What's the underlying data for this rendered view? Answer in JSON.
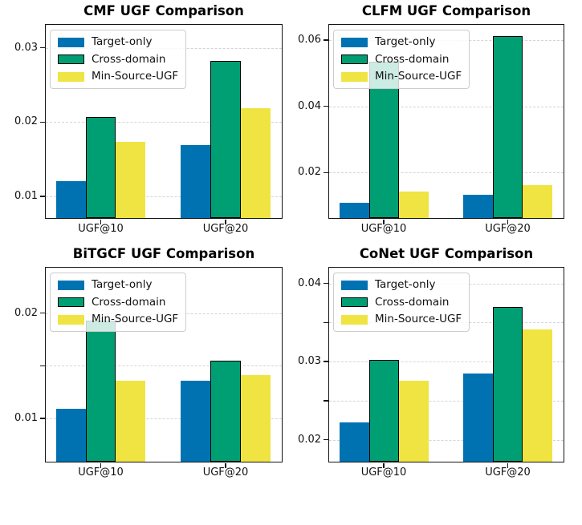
{
  "figure": {
    "background": "#ffffff"
  },
  "chart_data": {
    "type": "bar",
    "layout": "2x2-grid",
    "categories": [
      "UGF@10",
      "UGF@20"
    ],
    "series_names": [
      "Target-only",
      "Cross-domain",
      "Min-Source-UGF"
    ],
    "colors": {
      "Target-only": "#0072B2",
      "Cross-domain": "#009E73",
      "Min-Source-UGF": "#F0E442"
    },
    "cross_domain_edge_color": "#000000",
    "grid": "horizontal dashed light-gray",
    "legend_position": "upper-left",
    "charts": [
      {
        "title": "CMF UGF Comparison",
        "ylim": [
          0.0071,
          0.0331
        ],
        "yticks": [
          {
            "value": 0.01,
            "label": "0.01"
          },
          {
            "value": 0.02,
            "label": "0.02"
          },
          {
            "value": 0.03,
            "label": "0.03"
          }
        ],
        "series": [
          {
            "name": "Target-only",
            "values": [
              0.0121,
              0.0169
            ]
          },
          {
            "name": "Cross-domain",
            "values": [
              0.0207,
              0.0283
            ]
          },
          {
            "name": "Min-Source-UGF",
            "values": [
              0.0173,
              0.0219
            ]
          }
        ]
      },
      {
        "title": "CLFM UGF Comparison",
        "ylim": [
          0.0063,
          0.0646
        ],
        "yticks": [
          {
            "value": 0.02,
            "label": "0.02"
          },
          {
            "value": 0.04,
            "label": "0.04"
          },
          {
            "value": 0.06,
            "label": "0.06"
          }
        ],
        "series": [
          {
            "name": "Target-only",
            "values": [
              0.011,
              0.0134
            ]
          },
          {
            "name": "Cross-domain",
            "values": [
              0.0535,
              0.0612
            ]
          },
          {
            "name": "Min-Source-UGF",
            "values": [
              0.0144,
              0.0162
            ]
          }
        ]
      },
      {
        "title": "BiTGCF UGF Comparison",
        "ylim": [
          0.0059,
          0.0243
        ],
        "yticks": [
          {
            "value": 0.01,
            "label": "0.01"
          },
          {
            "value": 0.015,
            "label": ""
          },
          {
            "value": 0.02,
            "label": "0.02"
          }
        ],
        "series": [
          {
            "name": "Target-only",
            "values": [
              0.0109,
              0.0136
            ]
          },
          {
            "name": "Cross-domain",
            "values": [
              0.0193,
              0.0155
            ]
          },
          {
            "name": "Min-Source-UGF",
            "values": [
              0.0136,
              0.0141
            ]
          }
        ]
      },
      {
        "title": "CoNet UGF Comparison",
        "ylim": [
          0.0172,
          0.042
        ],
        "yticks": [
          {
            "value": 0.02,
            "label": "0.02"
          },
          {
            "value": 0.025,
            "label": ""
          },
          {
            "value": 0.03,
            "label": "0.03"
          },
          {
            "value": 0.035,
            "label": ""
          },
          {
            "value": 0.04,
            "label": "0.04"
          }
        ],
        "series": [
          {
            "name": "Target-only",
            "values": [
              0.0222,
              0.0285
            ]
          },
          {
            "name": "Cross-domain",
            "values": [
              0.0302,
              0.037
            ]
          },
          {
            "name": "Min-Source-UGF",
            "values": [
              0.0276,
              0.0341
            ]
          }
        ]
      }
    ]
  }
}
